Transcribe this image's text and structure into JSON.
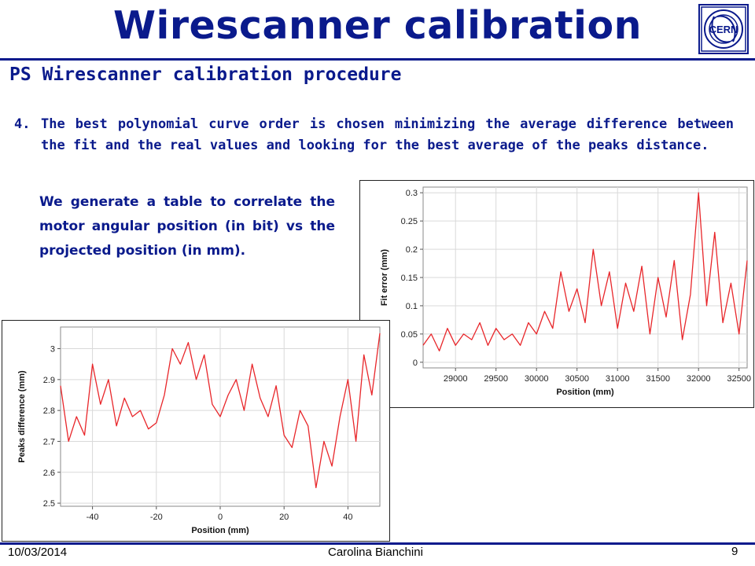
{
  "slide": {
    "title": "Wirescanner calibration",
    "subtitle": "PS Wirescanner calibration procedure",
    "point_number": "4.",
    "point_text": "The best polynomial curve order is chosen minimizing the average difference between the fit and the real values and looking for the best average of the peaks distance.",
    "note_text": "We generate a table to correlate the motor angular position (in bit) vs the projected position (in mm).",
    "logo_text": "CERN",
    "footer_date": "10/03/2014",
    "footer_author": "Carolina Bianchini",
    "page_number": "9"
  },
  "colors": {
    "title": "#0a1a8c",
    "series": "#e8262a",
    "grid": "#d9d9d9"
  },
  "chart_data": [
    {
      "type": "line",
      "xlabel": "Position (mm)",
      "ylabel": "Fit error (mm)",
      "xlim": [
        28600,
        32600
      ],
      "ylim": [
        -0.01,
        0.31
      ],
      "xticks": [
        29000,
        29500,
        30000,
        30500,
        31000,
        31500,
        32000,
        32500
      ],
      "yticks": [
        0,
        0.05,
        0.1,
        0.15,
        0.2,
        0.25,
        0.3
      ],
      "ytick_labels": [
        "0",
        "0.05",
        "0.1",
        "0.15",
        "0.2",
        "0.25",
        "0.3"
      ],
      "grid": true,
      "series": [
        {
          "x": [
            28600,
            28700,
            28800,
            28900,
            29000,
            29100,
            29200,
            29300,
            29400,
            29500,
            29600,
            29700,
            29800,
            29900,
            30000,
            30100,
            30200,
            30300,
            30400,
            30500,
            30600,
            30700,
            30800,
            30900,
            31000,
            31100,
            31200,
            31300,
            31400,
            31500,
            31600,
            31700,
            31800,
            31900,
            32000,
            32100,
            32200,
            32300,
            32400,
            32500,
            32600
          ],
          "y": [
            0.03,
            0.05,
            0.02,
            0.06,
            0.03,
            0.05,
            0.04,
            0.07,
            0.03,
            0.06,
            0.04,
            0.05,
            0.03,
            0.07,
            0.05,
            0.09,
            0.06,
            0.16,
            0.09,
            0.13,
            0.07,
            0.2,
            0.1,
            0.16,
            0.06,
            0.14,
            0.09,
            0.17,
            0.05,
            0.15,
            0.08,
            0.18,
            0.04,
            0.12,
            0.3,
            0.1,
            0.23,
            0.07,
            0.14,
            0.05,
            0.18
          ]
        }
      ]
    },
    {
      "type": "line",
      "xlabel": "Position (mm)",
      "ylabel": "Peaks difference (mm)",
      "xlim": [
        -50,
        50
      ],
      "ylim": [
        2.49,
        3.07
      ],
      "xticks": [
        -40,
        -20,
        0,
        20,
        40
      ],
      "yticks": [
        2.5,
        2.6,
        2.7,
        2.8,
        2.9,
        3
      ],
      "ytick_labels": [
        "2.5",
        "2.6",
        "2.7",
        "2.8",
        "2.9",
        "3"
      ],
      "grid": true,
      "series": [
        {
          "x": [
            -50,
            -47.5,
            -45,
            -42.5,
            -40,
            -37.5,
            -35,
            -32.5,
            -30,
            -27.5,
            -25,
            -22.5,
            -20,
            -17.5,
            -15,
            -12.5,
            -10,
            -7.5,
            -5,
            -2.5,
            0,
            2.5,
            5,
            7.5,
            10,
            12.5,
            15,
            17.5,
            20,
            22.5,
            25,
            27.5,
            30,
            32.5,
            35,
            37.5,
            40,
            42.5,
            45,
            47.5,
            50
          ],
          "y": [
            2.88,
            2.7,
            2.78,
            2.72,
            2.95,
            2.82,
            2.9,
            2.75,
            2.84,
            2.78,
            2.8,
            2.74,
            2.76,
            2.85,
            3.0,
            2.95,
            3.02,
            2.9,
            2.98,
            2.82,
            2.78,
            2.85,
            2.9,
            2.8,
            2.95,
            2.84,
            2.78,
            2.88,
            2.72,
            2.68,
            2.8,
            2.75,
            2.55,
            2.7,
            2.62,
            2.78,
            2.9,
            2.7,
            2.98,
            2.85,
            3.05
          ]
        }
      ]
    }
  ]
}
